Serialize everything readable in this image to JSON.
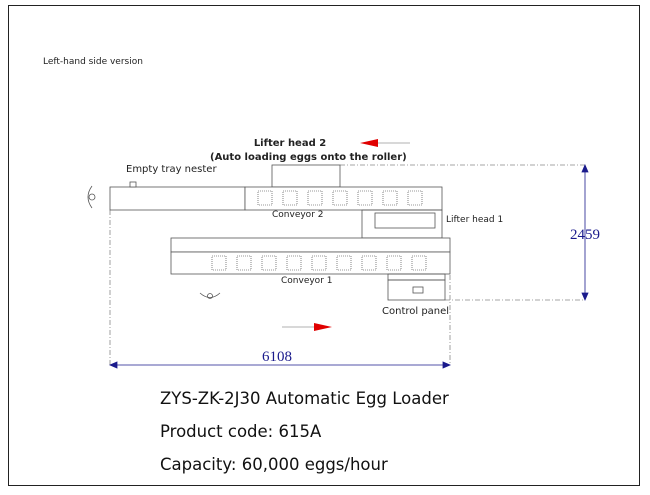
{
  "version_note": "Left-hand side version",
  "labels": {
    "lifter_head_2": "Lifter head 2",
    "lifter_head_2_desc": "(Auto loading eggs onto the roller)",
    "empty_tray_nester": "Empty tray nester",
    "conveyor_2": "Conveyor 2",
    "lifter_head_1": "Lifter head 1",
    "conveyor_1": "Conveyor 1",
    "control_panel": "Control panel"
  },
  "dimensions": {
    "width": "6108",
    "depth": "2459"
  },
  "product": {
    "title": "ZYS-ZK-2J30 Automatic Egg Loader",
    "code": "Product code: 615A",
    "capacity": "Capacity: 60,000 eggs/hour"
  },
  "colors": {
    "arrow": "#e00000",
    "dimension": "#1a1a8c",
    "line": "#555555"
  }
}
